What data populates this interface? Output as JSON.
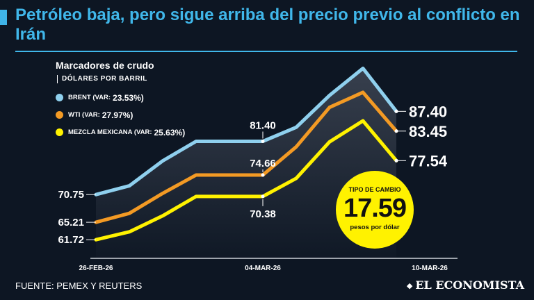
{
  "headline": "Petróleo baja, pero sigue arriba del precio previo al conflicto en Irán",
  "colors": {
    "accent": "#40b7ea",
    "background": "#0d1623",
    "brent": "#8fd0ee",
    "wti": "#f39a24",
    "mezcla": "#fff200"
  },
  "legend": {
    "title": "Marcadores de crudo",
    "subtitle": "DÓLARES POR BARRIL",
    "items": [
      {
        "name": "BRENT (VAR:",
        "var": "23.53%)"
      },
      {
        "name": "WTI (VAR:",
        "var": "27.97%)"
      },
      {
        "name": "MEZCLA MEXICANA (VAR:",
        "var": "25.63%)"
      }
    ]
  },
  "exchange_rate": {
    "label": "TIPO DE CAMBIO",
    "value": "17.59",
    "unit": "pesos por dólar"
  },
  "footer": {
    "source": "FUENTE: PEMEX Y REUTERS",
    "logo": "EL ECONOMISTA"
  },
  "chart_data": {
    "type": "line",
    "title": "Marcadores de crudo",
    "ylabel": "DÓLARES POR BARRIL",
    "x": [
      "26-FEB-26",
      "",
      "",
      "",
      "",
      "04-MAR-26",
      "",
      "",
      "",
      "",
      "10-MAR-26"
    ],
    "x_ticks": [
      "26-FEB-26",
      "04-MAR-26",
      "10-MAR-26"
    ],
    "ylim": [
      58,
      98
    ],
    "series": [
      {
        "name": "BRENT",
        "color": "#8fd0ee",
        "values": [
          70.75,
          72.5,
          77.5,
          81.4,
          81.4,
          81.4,
          84.2,
          90.6,
          96.0,
          87.4,
          null
        ]
      },
      {
        "name": "WTI",
        "color": "#f39a24",
        "values": [
          65.21,
          67.0,
          71.0,
          74.66,
          74.66,
          74.66,
          80.3,
          88.2,
          91.2,
          83.45,
          null
        ]
      },
      {
        "name": "MEZCLA MEXICANA",
        "color": "#fff200",
        "values": [
          61.72,
          63.3,
          66.5,
          70.38,
          70.38,
          70.38,
          74.0,
          81.3,
          85.5,
          77.54,
          null
        ]
      }
    ],
    "annotations": [
      {
        "series": "BRENT",
        "point": "start",
        "text": "70.75"
      },
      {
        "series": "WTI",
        "point": "start",
        "text": "65.21"
      },
      {
        "series": "MEZCLA MEXICANA",
        "point": "start",
        "text": "61.72"
      },
      {
        "series": "BRENT",
        "point": "04-MAR-26",
        "text": "81.40"
      },
      {
        "series": "WTI",
        "point": "04-MAR-26",
        "text": "74.66"
      },
      {
        "series": "MEZCLA MEXICANA",
        "point": "04-MAR-26",
        "text": "70.38"
      },
      {
        "series": "BRENT",
        "point": "end",
        "text": "87.40"
      },
      {
        "series": "WTI",
        "point": "end",
        "text": "83.45"
      },
      {
        "series": "MEZCLA MEXICANA",
        "point": "end",
        "text": "77.54"
      }
    ]
  }
}
